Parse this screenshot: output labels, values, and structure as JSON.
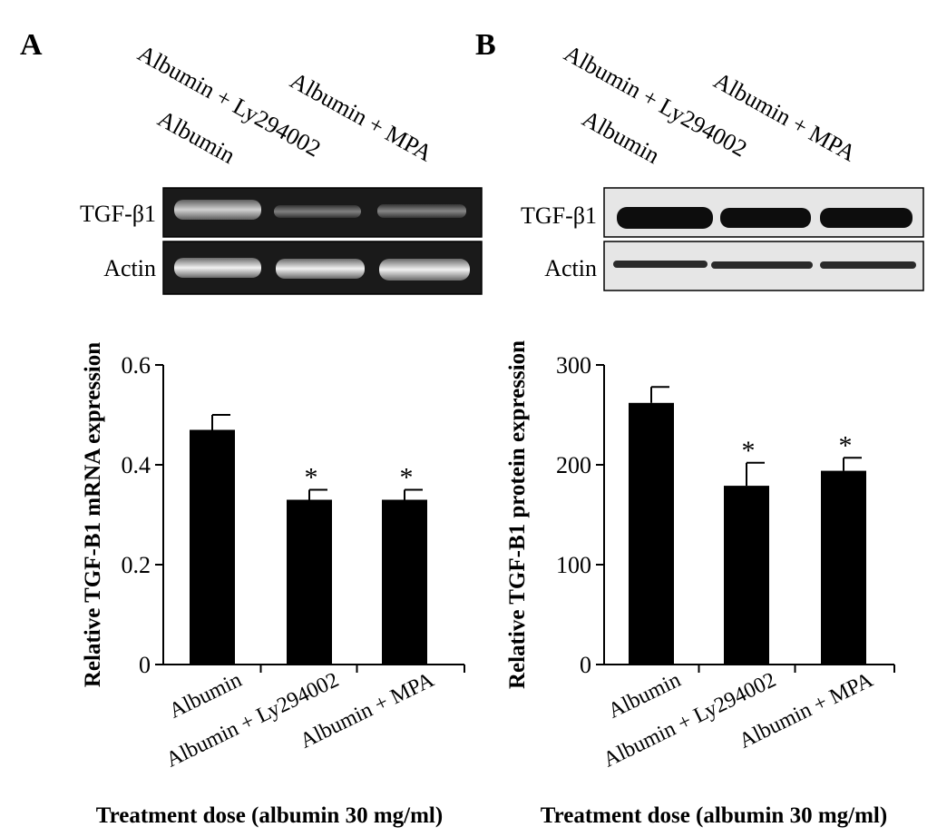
{
  "panels": [
    {
      "letter": "A",
      "lanes": [
        "Albumin",
        "Albumin + Ly294002",
        "Albumin + MPA"
      ],
      "blot_rows": [
        "TGF-β1",
        "Actin"
      ]
    },
    {
      "letter": "B",
      "lanes": [
        "Albumin",
        "Albumin + Ly294002",
        "Albumin + MPA"
      ],
      "blot_rows": [
        "TGF-β1",
        "Actin"
      ]
    }
  ],
  "chart_data": [
    {
      "type": "bar",
      "categories": [
        "Albumin",
        "Albumin + Ly294002",
        "Albumin + MPA"
      ],
      "values": [
        0.47,
        0.33,
        0.33
      ],
      "errors": [
        0.03,
        0.02,
        0.02
      ],
      "significance": [
        "",
        "*",
        "*"
      ],
      "xlabel": "Treatment dose (albumin 30 mg/ml)",
      "ylabel": "Relative TGF-B1 mRNA expression",
      "ylim": [
        0,
        0.6
      ],
      "yticks": [
        0,
        0.2,
        0.4,
        0.6
      ],
      "ytick_labels": [
        "0",
        "0.2",
        "0.4",
        "0.6"
      ],
      "color": "#000000"
    },
    {
      "type": "bar",
      "categories": [
        "Albumin",
        "Albumin + Ly294002",
        "Albumin + MPA"
      ],
      "values": [
        262,
        179,
        194
      ],
      "errors": [
        16,
        23,
        13
      ],
      "significance": [
        "",
        "*",
        "*"
      ],
      "xlabel": "Treatment dose (albumin 30 mg/ml)",
      "ylabel": "Relative TGF-B1 protein expression",
      "ylim": [
        0,
        300
      ],
      "yticks": [
        0,
        100,
        200,
        300
      ],
      "ytick_labels": [
        "0",
        "100",
        "200",
        "300"
      ],
      "color": "#000000"
    }
  ]
}
